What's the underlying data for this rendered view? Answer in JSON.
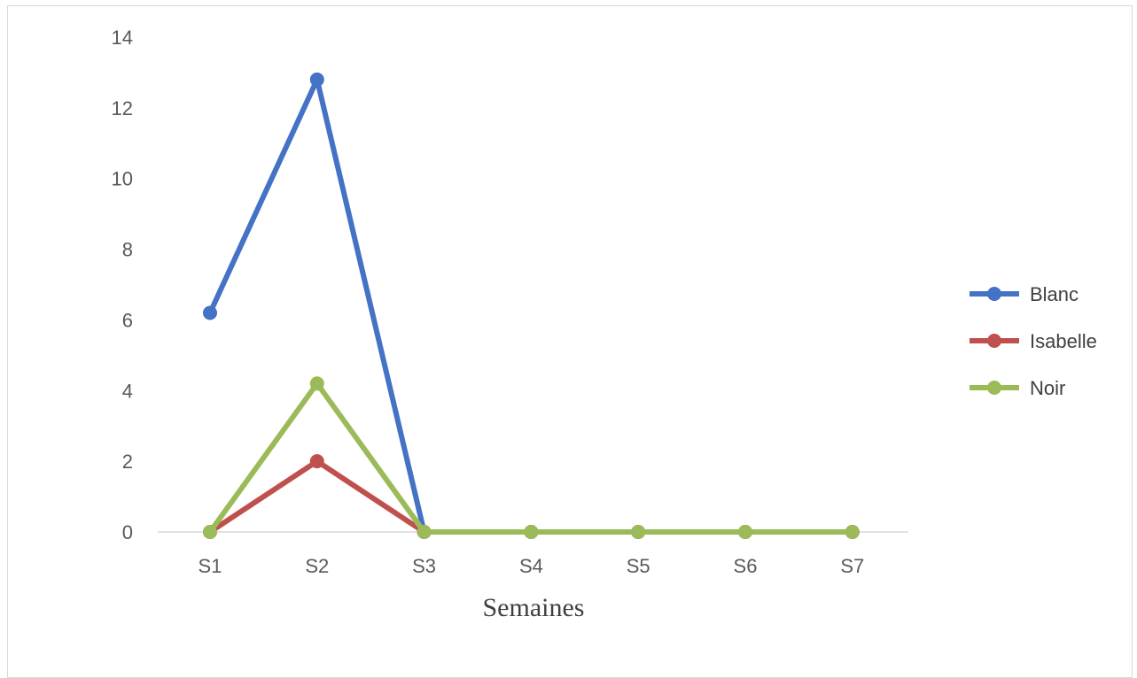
{
  "chart_data": {
    "type": "line",
    "title": "",
    "xlabel": "Semaines",
    "ylabel": "",
    "categories": [
      "S1",
      "S2",
      "S3",
      "S4",
      "S5",
      "S6",
      "S7"
    ],
    "ylim": [
      0,
      14
    ],
    "yticks": [
      0,
      2,
      4,
      6,
      8,
      10,
      12,
      14
    ],
    "grid": false,
    "legend_position": "right",
    "series": [
      {
        "name": "Blanc",
        "color": "#4472c4",
        "values": [
          6.2,
          12.8,
          0,
          0,
          0,
          0,
          0
        ]
      },
      {
        "name": "Isabelle",
        "color": "#c0504d",
        "values": [
          0,
          2.0,
          0,
          0,
          0,
          0,
          0
        ]
      },
      {
        "name": "Noir",
        "color": "#9bbb59",
        "values": [
          0,
          4.2,
          0,
          0,
          0,
          0,
          0
        ]
      }
    ]
  }
}
